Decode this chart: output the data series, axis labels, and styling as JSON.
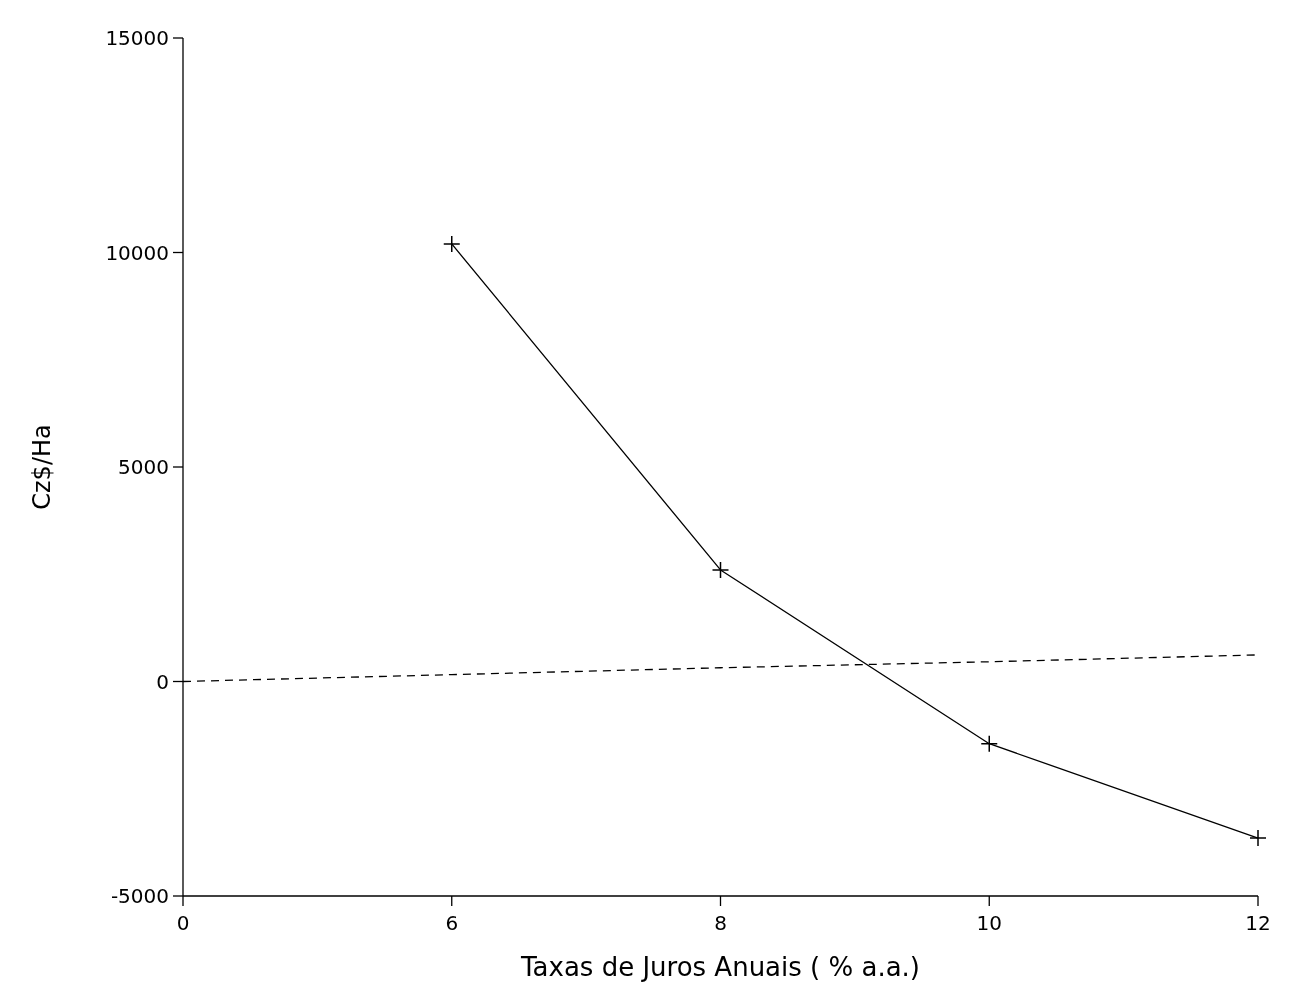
{
  "chart_data": {
    "type": "line",
    "xlabel": "Taxas de Juros Anuais  ( % a.a.)",
    "ylabel": "Cz$/Ha",
    "categories": [
      "0",
      "6",
      "8",
      "10",
      "12"
    ],
    "series": [
      {
        "color": "#000000",
        "values": [
          null,
          10200,
          2600,
          -1450,
          -3650
        ],
        "marker": "cross",
        "line_style": "solid"
      },
      {
        "color": "#000000",
        "values": [
          0,
          160,
          320,
          460,
          620
        ],
        "marker": "none",
        "line_style": "dashed"
      }
    ],
    "ylim": [
      -5000,
      15000
    ],
    "yticks": [
      -5000,
      0,
      5000,
      10000,
      15000
    ],
    "grid": false
  }
}
